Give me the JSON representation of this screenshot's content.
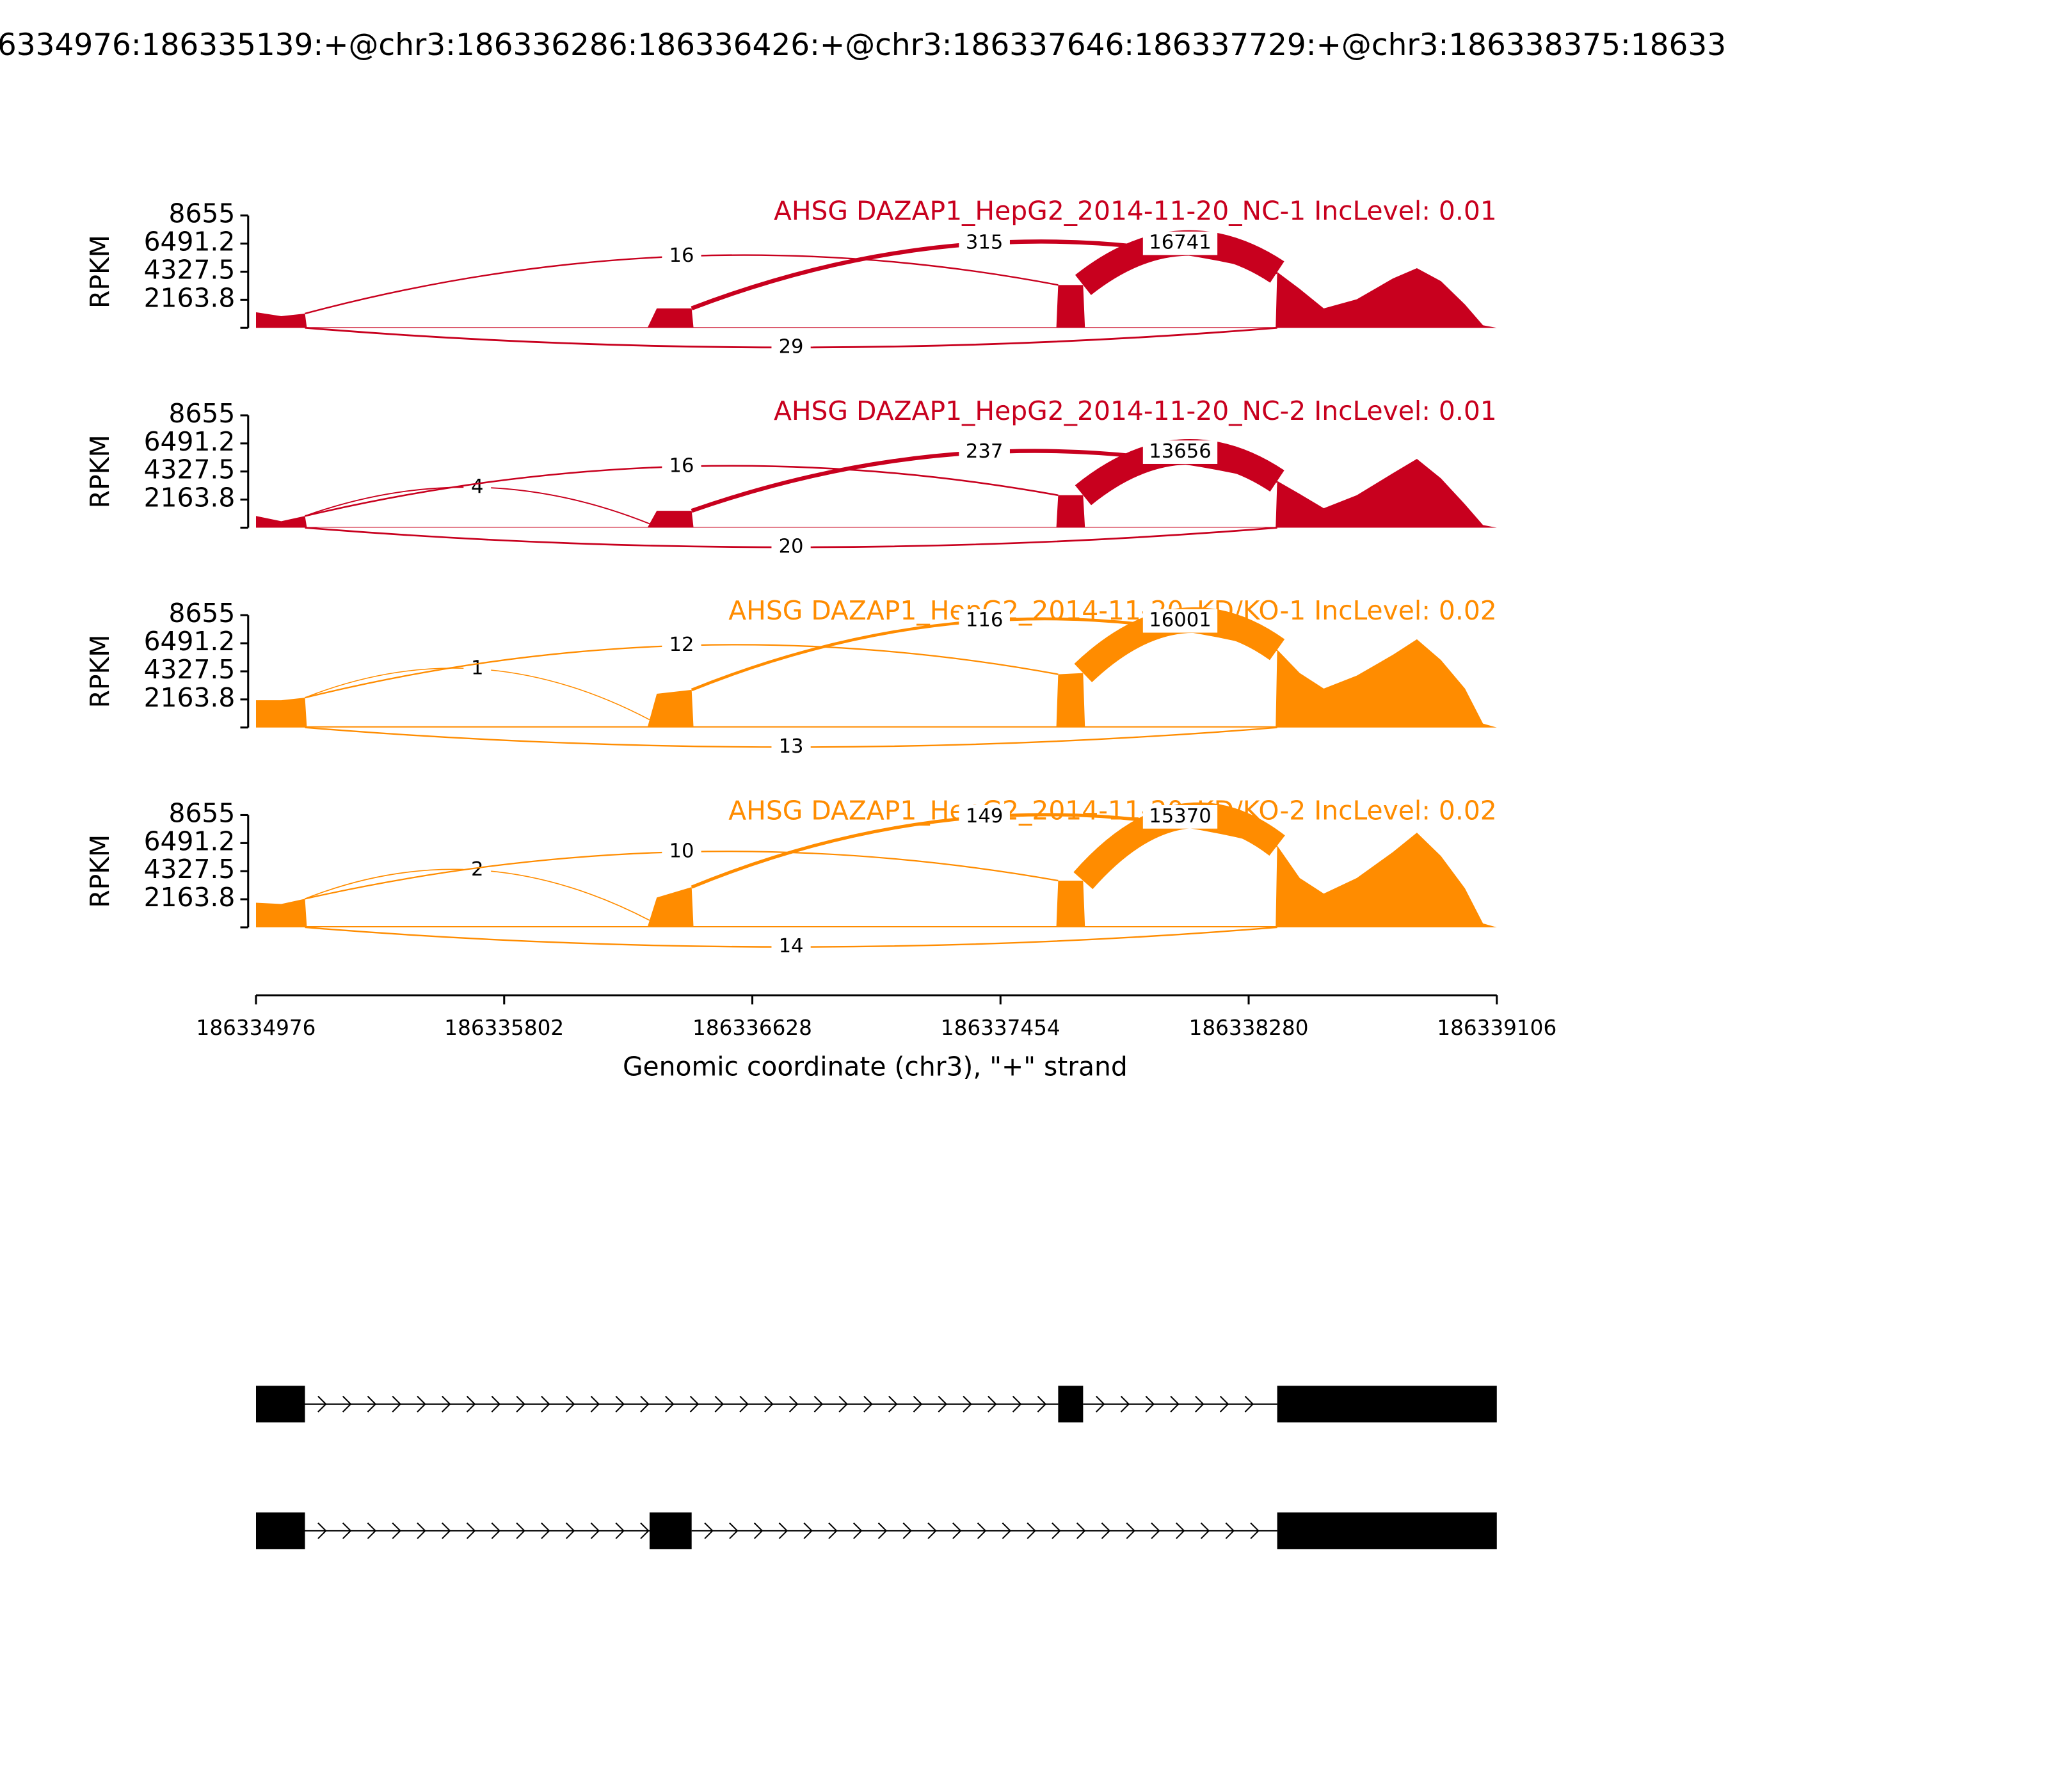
{
  "chart_data": {
    "type": "sashimi",
    "title": "6334976:186335139:+@chr3:186336286:186336426:+@chr3:186337646:186337729:+@chr3:186338375:18633",
    "xlabel": "Genomic coordinate (chr3), \"+\" strand",
    "ylabel": "RPKM",
    "xlim": [
      186334976,
      186339106
    ],
    "xticks": [
      186334976,
      186335802,
      186336628,
      186337454,
      186338280,
      186339106
    ],
    "ylim": [
      0,
      8655
    ],
    "yticks": [
      2163.8,
      4327.5,
      6491.2,
      8655
    ],
    "coverage_x": [
      186334976,
      186335060,
      186335139,
      186335145,
      186336280,
      186336310,
      186336426,
      186336432,
      186337640,
      186337646,
      186337729,
      186337735,
      186338370,
      186338375,
      186338450,
      186338530,
      186338640,
      186338760,
      186338840,
      186338920,
      186339000,
      186339060,
      186339106
    ],
    "panels": [
      {
        "title": "AHSG DAZAP1_HepG2_2014-11-20_NC-1 IncLevel: 0.01",
        "color": "#c8001e",
        "coverage": [
          1200,
          900,
          1100,
          50,
          50,
          1500,
          1500,
          50,
          50,
          3300,
          3300,
          50,
          50,
          4300,
          3000,
          1500,
          2200,
          3800,
          4600,
          3600,
          1800,
          200,
          0
        ],
        "junctions": [
          {
            "start": 186335139,
            "end": 186337646,
            "value": 16,
            "side": "above"
          },
          {
            "start": 186336426,
            "end": 186338375,
            "value": 315,
            "side": "above"
          },
          {
            "start": 186337729,
            "end": 186338375,
            "value": 16741,
            "side": "above"
          },
          {
            "start": 186335139,
            "end": 186338375,
            "value": 29,
            "side": "below"
          }
        ]
      },
      {
        "title": "AHSG DAZAP1_HepG2_2014-11-20_NC-2 IncLevel: 0.01",
        "color": "#c8001e",
        "coverage": [
          900,
          500,
          900,
          50,
          50,
          1300,
          1300,
          50,
          50,
          2500,
          2500,
          50,
          50,
          3600,
          2600,
          1500,
          2500,
          4200,
          5300,
          3800,
          1800,
          200,
          0
        ],
        "junctions": [
          {
            "start": 186335139,
            "end": 186336286,
            "value": 4,
            "side": "above"
          },
          {
            "start": 186335139,
            "end": 186337646,
            "value": 16,
            "side": "above"
          },
          {
            "start": 186336426,
            "end": 186338375,
            "value": 237,
            "side": "above"
          },
          {
            "start": 186337729,
            "end": 186338375,
            "value": 13656,
            "side": "above"
          },
          {
            "start": 186335139,
            "end": 186338375,
            "value": 20,
            "side": "below"
          }
        ]
      },
      {
        "title": "AHSG DAZAP1_HepG2_2014-11-20_KD/KO-1 IncLevel: 0.02",
        "color": "#ff8c00",
        "coverage": [
          2100,
          2100,
          2300,
          100,
          100,
          2600,
          2900,
          100,
          100,
          4100,
          4200,
          100,
          100,
          6000,
          4200,
          3000,
          4000,
          5600,
          6800,
          5200,
          3000,
          300,
          0
        ],
        "junctions": [
          {
            "start": 186335139,
            "end": 186336286,
            "value": 1,
            "side": "above"
          },
          {
            "start": 186335139,
            "end": 186337646,
            "value": 12,
            "side": "above"
          },
          {
            "start": 186336426,
            "end": 186338375,
            "value": 116,
            "side": "above"
          },
          {
            "start": 186337729,
            "end": 186338375,
            "value": 16001,
            "side": "above"
          },
          {
            "start": 186335139,
            "end": 186338375,
            "value": 13,
            "side": "below"
          }
        ]
      },
      {
        "title": "AHSG DAZAP1_HepG2_2014-11-20_KD/KO-2 IncLevel: 0.02",
        "color": "#ff8c00",
        "coverage": [
          1900,
          1800,
          2200,
          100,
          100,
          2300,
          3100,
          100,
          100,
          3600,
          3600,
          100,
          100,
          6300,
          3800,
          2600,
          3800,
          5800,
          7300,
          5500,
          3000,
          300,
          0
        ],
        "junctions": [
          {
            "start": 186335139,
            "end": 186336286,
            "value": 2,
            "side": "above"
          },
          {
            "start": 186335139,
            "end": 186337646,
            "value": 10,
            "side": "above"
          },
          {
            "start": 186336426,
            "end": 186338375,
            "value": 149,
            "side": "above"
          },
          {
            "start": 186337729,
            "end": 186338375,
            "value": 15370,
            "side": "above"
          },
          {
            "start": 186335139,
            "end": 186338375,
            "value": 14,
            "side": "below"
          }
        ]
      }
    ],
    "transcripts": [
      {
        "exons": [
          [
            186334976,
            186335139
          ],
          [
            186337646,
            186337729
          ],
          [
            186338375,
            186339106
          ]
        ]
      },
      {
        "exons": [
          [
            186334976,
            186335139
          ],
          [
            186336286,
            186336426
          ],
          [
            186338375,
            186339106
          ]
        ]
      }
    ]
  }
}
